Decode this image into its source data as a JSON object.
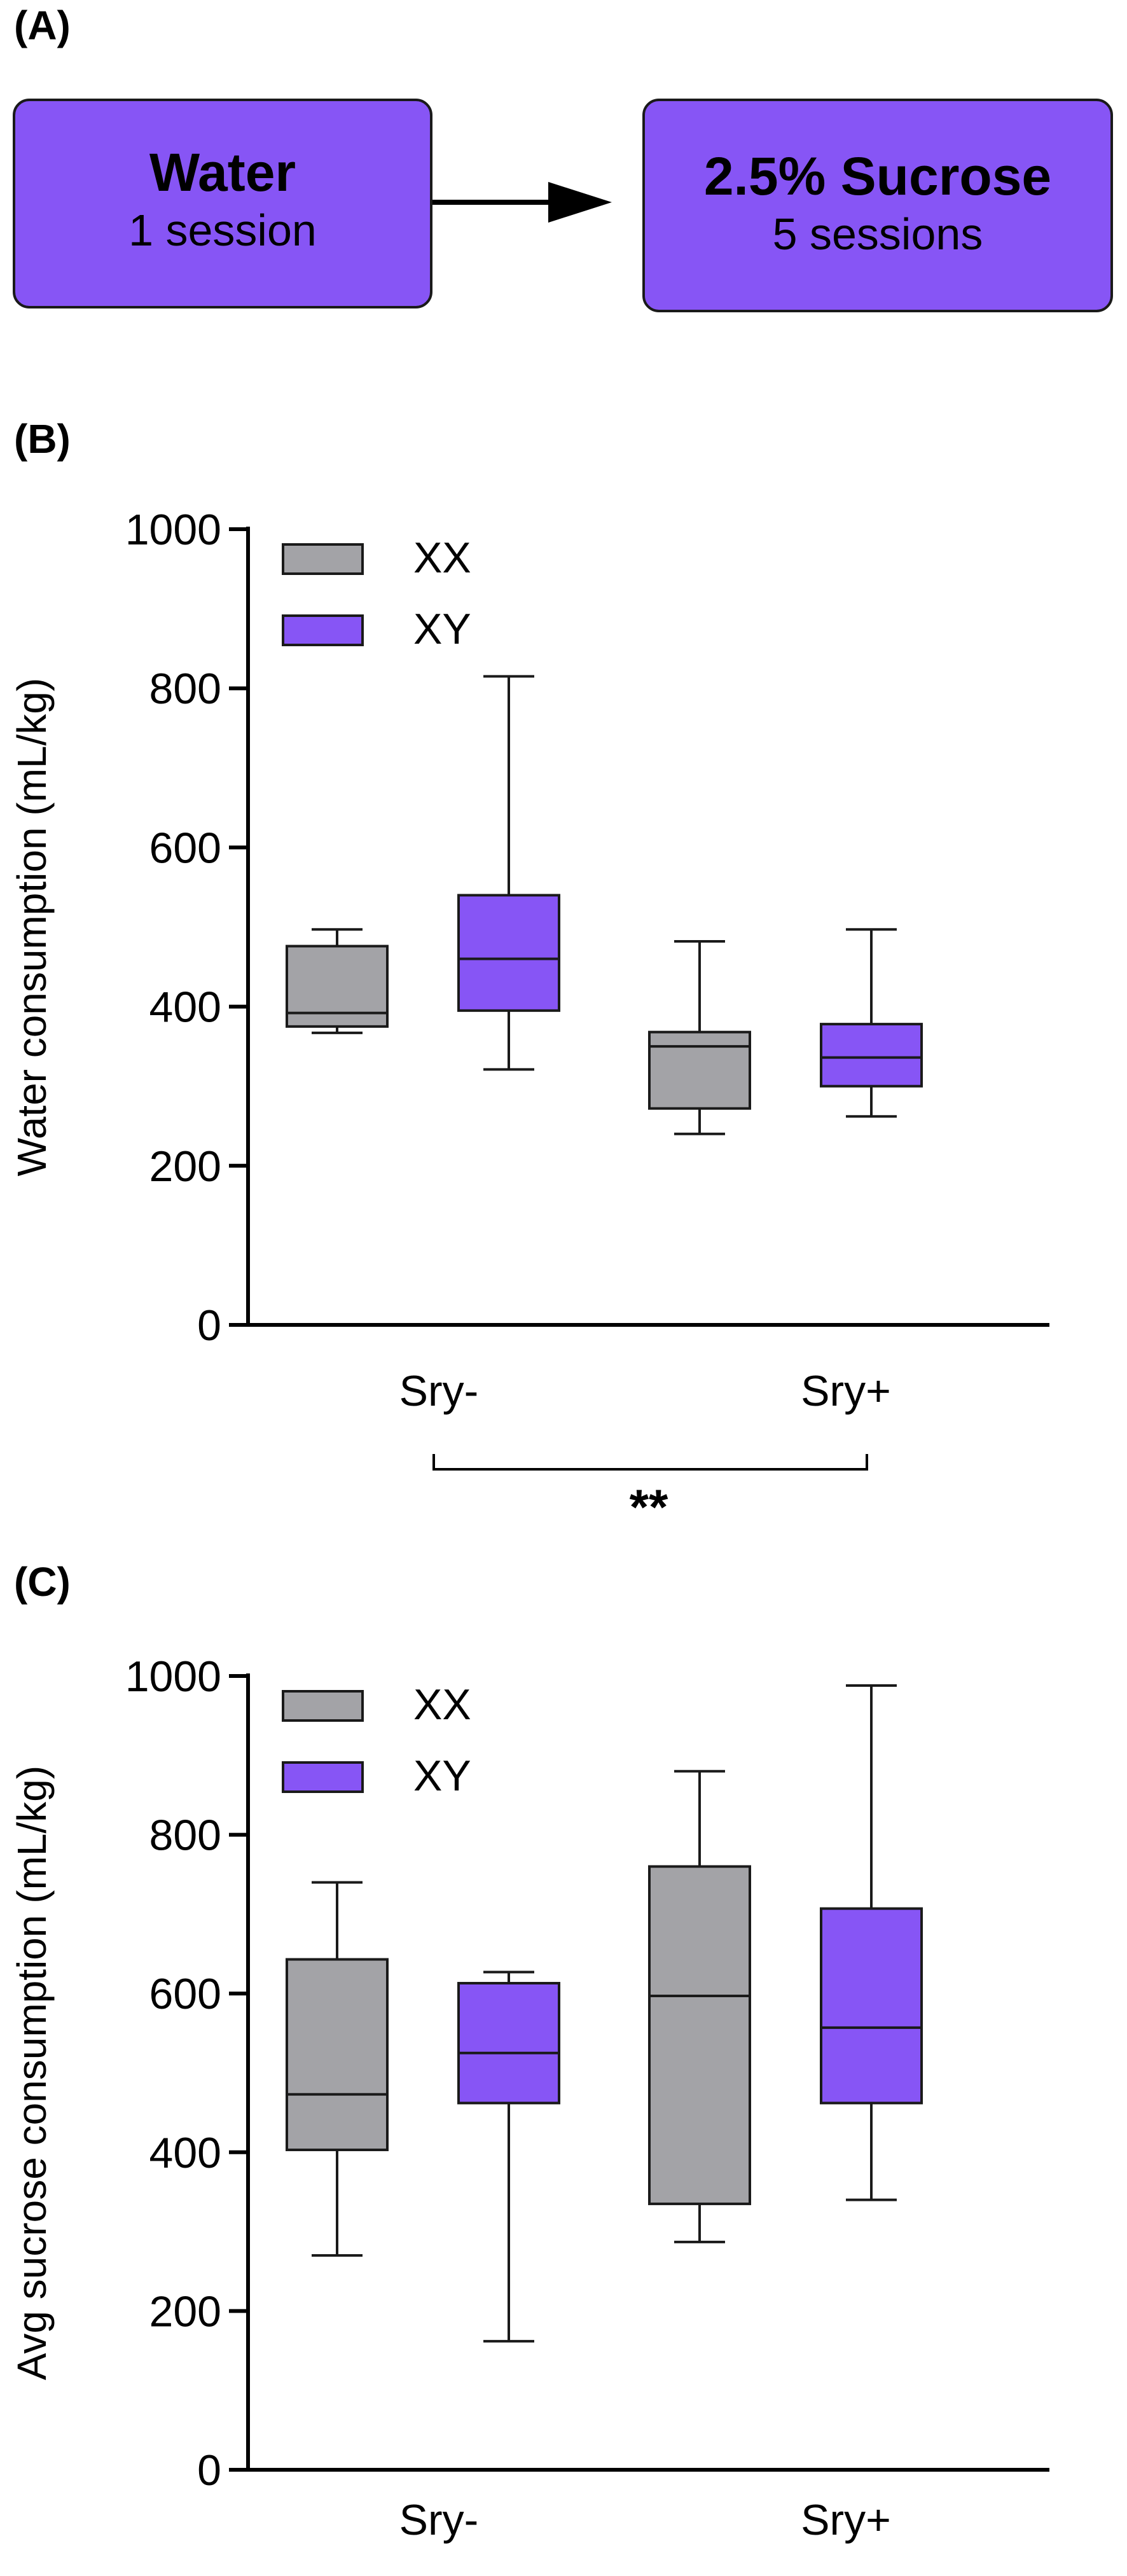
{
  "panels": {
    "a": "(A)",
    "b": "(B)",
    "c": "(C)"
  },
  "flow": {
    "step1": {
      "title": "Water",
      "subtitle": "1 session"
    },
    "step2": {
      "title": "2.5% Sucrose",
      "subtitle": "5 sessions"
    }
  },
  "colors": {
    "xx": "#a3a3a7",
    "xy": "#8755f5",
    "box_fill": "#8755f5",
    "ink": "#1a1a1a"
  },
  "significance": "**",
  "chart_data": [
    {
      "type": "box",
      "ylabel": "Water consumption (mL/kg)",
      "xlabel": "",
      "categories": [
        "Sry-",
        "Sry+"
      ],
      "ylim": [
        0,
        1000
      ],
      "yticks": [
        0,
        200,
        400,
        600,
        800,
        1000
      ],
      "legend": {
        "position": "top-left",
        "entries": [
          "XX",
          "XY"
        ]
      },
      "series": [
        {
          "name": "XX",
          "boxes": [
            {
              "min": 367,
              "q1": 375,
              "median": 392,
              "q3": 476,
              "max": 497
            },
            {
              "min": 240,
              "q1": 272,
              "median": 350,
              "q3": 368,
              "max": 482
            }
          ]
        },
        {
          "name": "XY",
          "boxes": [
            {
              "min": 321,
              "q1": 395,
              "median": 460,
              "q3": 540,
              "max": 815
            },
            {
              "min": 262,
              "q1": 300,
              "median": 336,
              "q3": 378,
              "max": 497
            }
          ]
        }
      ]
    },
    {
      "type": "box",
      "ylabel": "Avg sucrose consumption (mL/kg)",
      "xlabel": "",
      "categories": [
        "Sry-",
        "Sry+"
      ],
      "ylim": [
        0,
        1000
      ],
      "yticks": [
        0,
        200,
        400,
        600,
        800,
        1000
      ],
      "legend": {
        "position": "top-left",
        "entries": [
          "XX",
          "XY"
        ]
      },
      "series": [
        {
          "name": "XX",
          "boxes": [
            {
              "min": 270,
              "q1": 403,
              "median": 473,
              "q3": 643,
              "max": 740
            },
            {
              "min": 287,
              "q1": 335,
              "median": 597,
              "q3": 760,
              "max": 880
            }
          ]
        },
        {
          "name": "XY",
          "boxes": [
            {
              "min": 162,
              "q1": 462,
              "median": 525,
              "q3": 613,
              "max": 627
            },
            {
              "min": 340,
              "q1": 462,
              "median": 557,
              "q3": 707,
              "max": 988
            }
          ]
        }
      ]
    }
  ]
}
